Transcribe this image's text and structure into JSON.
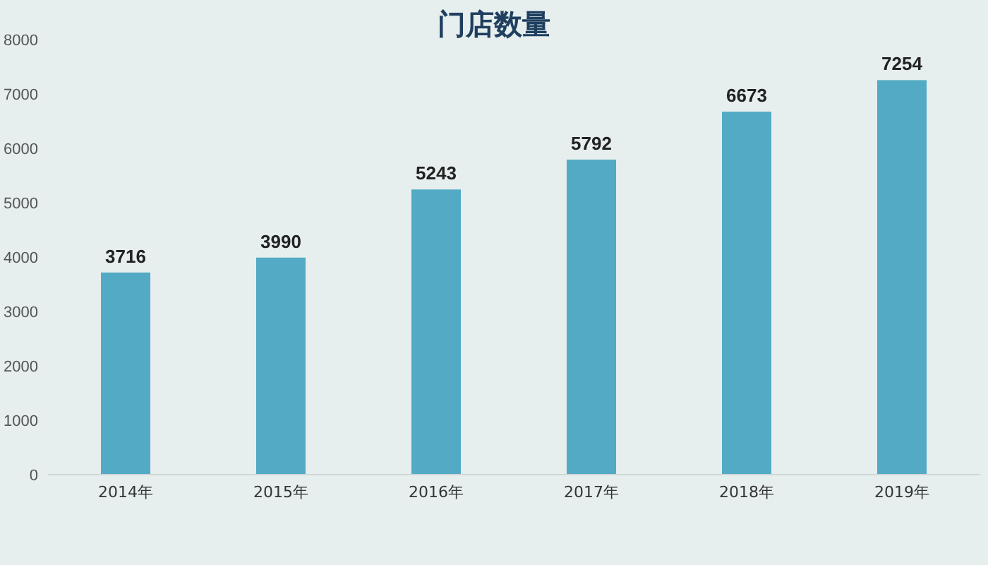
{
  "chart_data": {
    "type": "bar",
    "title": "门店数量",
    "categories": [
      "2014年",
      "2015年",
      "2016年",
      "2017年",
      "2018年",
      "2019年"
    ],
    "values": [
      3716,
      3990,
      5243,
      5792,
      6673,
      7254
    ],
    "color": "#52aac4",
    "ylim": [
      0,
      8000
    ],
    "yticks": [
      0,
      1000,
      2000,
      3000,
      4000,
      5000,
      6000,
      7000,
      8000
    ],
    "grid": false,
    "data_labels": true
  }
}
